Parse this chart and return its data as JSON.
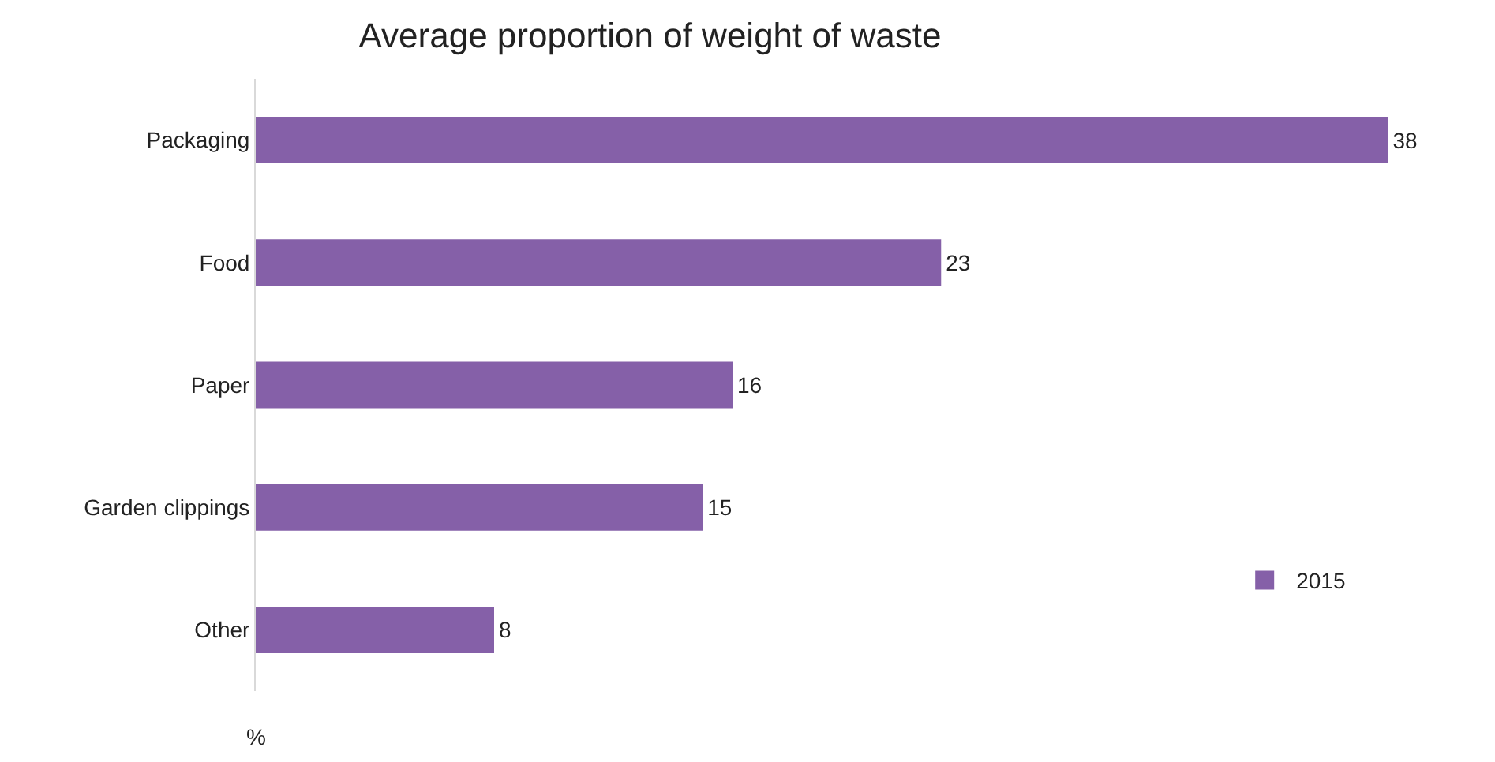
{
  "chart_data": {
    "type": "bar",
    "title": "Average proportion of weight of waste",
    "xlabel": "%",
    "orientation": "horizontal",
    "categories": [
      "Packaging",
      "Food",
      "Paper",
      "Garden clippings",
      "Other"
    ],
    "series": [
      {
        "name": "2015",
        "color": "#8560a8",
        "values": [
          38,
          23,
          16,
          15,
          8
        ]
      }
    ],
    "data_labels": true,
    "legend": "bottom right",
    "grid": false,
    "tick_labels": "y"
  }
}
